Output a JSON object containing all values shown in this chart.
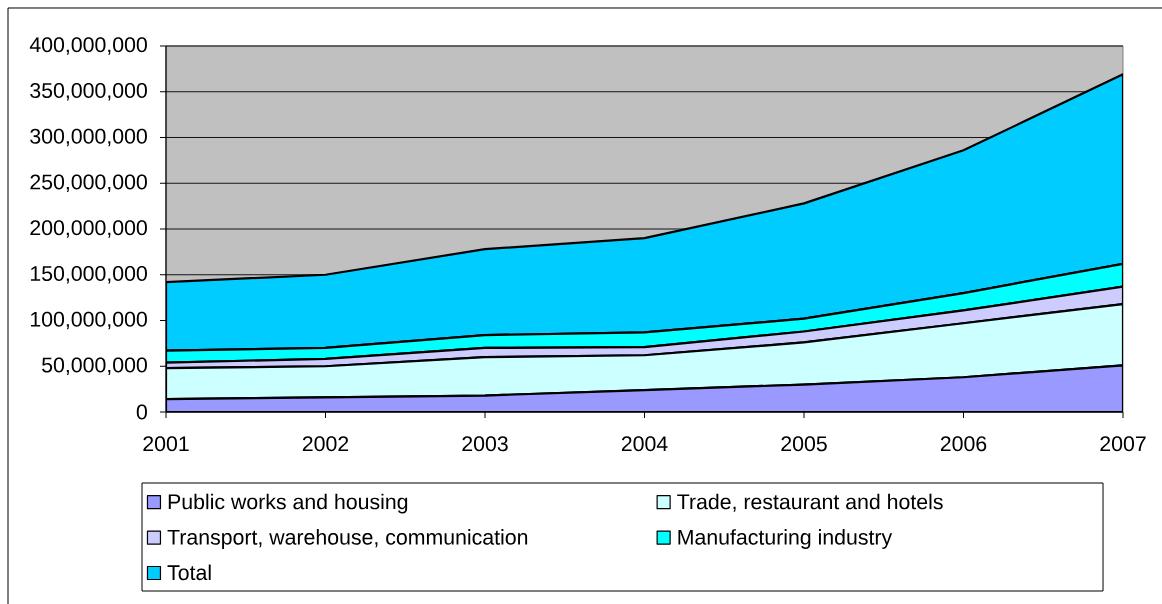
{
  "chart_data": {
    "type": "area",
    "stacked": true,
    "categories": [
      "2001",
      "2002",
      "2003",
      "2004",
      "2005",
      "2006",
      "2007"
    ],
    "series": [
      {
        "name": "Public works and housing",
        "color": "#9999ff",
        "values": [
          14000000,
          16000000,
          18000000,
          24000000,
          30000000,
          38000000,
          51000000
        ]
      },
      {
        "name": "Trade, restaurant and hotels",
        "color": "#ccffff",
        "values": [
          34000000,
          34000000,
          42000000,
          38000000,
          46000000,
          59000000,
          67000000
        ]
      },
      {
        "name": "Transport, warehouse, communication",
        "color": "#ccccff",
        "values": [
          6000000,
          8000000,
          10000000,
          9000000,
          12000000,
          14000000,
          19000000
        ]
      },
      {
        "name": "Manufacturing industry",
        "color": "#00ffff",
        "values": [
          13000000,
          12000000,
          14000000,
          16000000,
          14000000,
          19000000,
          25000000
        ]
      },
      {
        "name": "Total",
        "color": "#00ccff",
        "values": [
          75000000,
          80000000,
          94000000,
          103000000,
          126000000,
          156000000,
          207000000
        ]
      }
    ],
    "ylim": [
      0,
      400000000
    ],
    "yticks": [
      {
        "value": 0,
        "label": "0"
      },
      {
        "value": 50000000,
        "label": "50,000,000"
      },
      {
        "value": 100000000,
        "label": "100,000,000"
      },
      {
        "value": 150000000,
        "label": "150,000,000"
      },
      {
        "value": 200000000,
        "label": "200,000,000"
      },
      {
        "value": 250000000,
        "label": "250,000,000"
      },
      {
        "value": 300000000,
        "label": "300,000,000"
      },
      {
        "value": 350000000,
        "label": "350,000,000"
      },
      {
        "value": 400000000,
        "label": "400,000,000"
      }
    ],
    "grid": "y",
    "legend": "bottom"
  }
}
